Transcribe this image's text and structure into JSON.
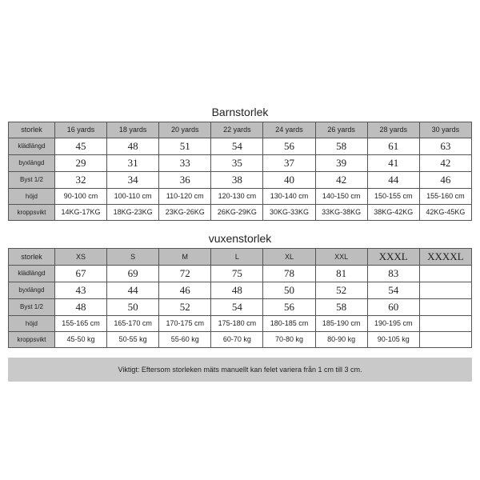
{
  "children": {
    "title": "Barnstorlek",
    "header": [
      "storlek",
      "16 yards",
      "18 yards",
      "20 yards",
      "22 yards",
      "24 yards",
      "26 yards",
      "28 yards",
      "30 yards"
    ],
    "rows": [
      [
        "klädlängd",
        "45",
        "48",
        "51",
        "54",
        "56",
        "58",
        "61",
        "63"
      ],
      [
        "byxlängd",
        "29",
        "31",
        "33",
        "35",
        "37",
        "39",
        "41",
        "42"
      ],
      [
        "Byst 1/2",
        "32",
        "34",
        "36",
        "38",
        "40",
        "42",
        "44",
        "46"
      ],
      [
        "höjd",
        "90-100 cm",
        "100-110 cm",
        "110-120 cm",
        "120-130 cm",
        "130-140 cm",
        "140-150 cm",
        "150-155 cm",
        "155-160 cm"
      ],
      [
        "kroppsvikt",
        "14KG-17KG",
        "18KG-23KG",
        "23KG-26KG",
        "26KG-29KG",
        "30KG-33KG",
        "33KG-38KG",
        "38KG-42KG",
        "42KG-45KG"
      ]
    ]
  },
  "adult": {
    "title": "vuxenstorlek",
    "header": [
      "storlek",
      "XS",
      "S",
      "M",
      "L",
      "XL",
      "XXL",
      "XXXL",
      "XXXXL"
    ],
    "rows": [
      [
        "klädlängd",
        "67",
        "69",
        "72",
        "75",
        "78",
        "81",
        "83",
        ""
      ],
      [
        "byxlängd",
        "43",
        "44",
        "46",
        "48",
        "50",
        "52",
        "54",
        ""
      ],
      [
        "Byst 1/2",
        "48",
        "50",
        "52",
        "54",
        "56",
        "58",
        "60",
        ""
      ],
      [
        "höjd",
        "155-165 cm",
        "165-170 cm",
        "170-175 cm",
        "175-180 cm",
        "180-185 cm",
        "185-190 cm",
        "190-195 cm",
        ""
      ],
      [
        "kroppsvikt",
        "45-50 kg",
        "50-55 kg",
        "55-60 kg",
        "60-70 kg",
        "70-80 kg",
        "80-90 kg",
        "90-105 kg",
        ""
      ]
    ]
  },
  "note": "Viktigt: Eftersom storleken mäts manuellt kan felet variera från 1 cm till 3 cm.",
  "bigIndices": {
    "children": [
      "1",
      "2",
      "3"
    ],
    "adultHeader": [
      7,
      8
    ]
  },
  "colors": {
    "headerBg": "#bdbdbd",
    "border": "#555",
    "bg": "#ffffff",
    "noteBg": "#c9c9c9",
    "text": "#222"
  }
}
